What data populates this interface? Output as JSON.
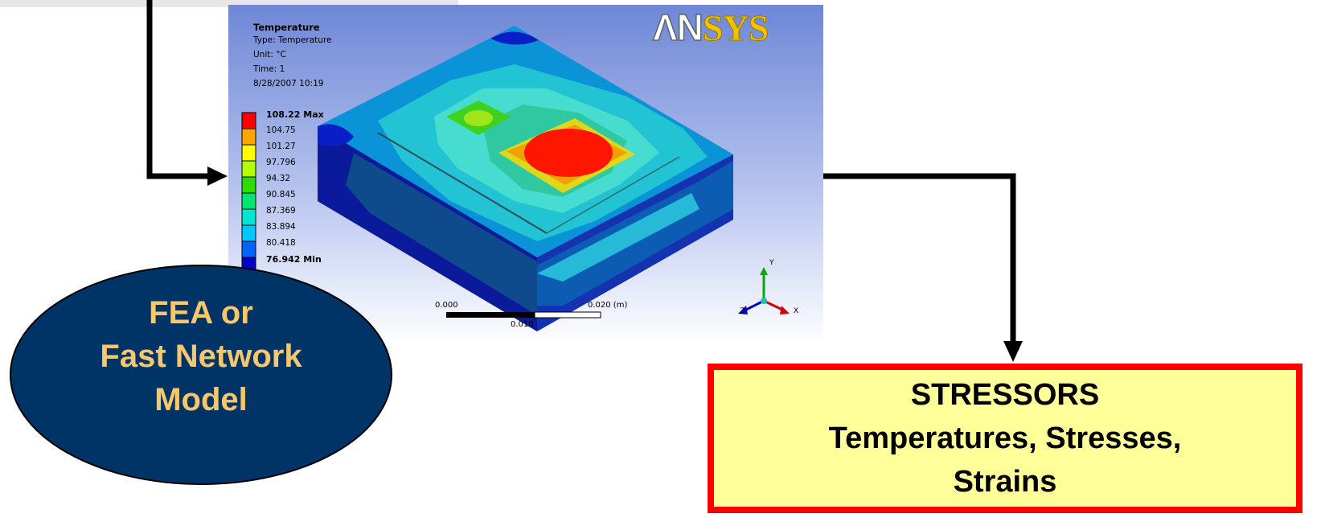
{
  "fea_result": {
    "title": "Temperature",
    "type_line": "Type: Temperature",
    "unit_line": "Unit: °C",
    "time_line": "Time: 1",
    "date_line": "8/28/2007 10:19",
    "logo_a": "ΛN",
    "logo_b": "SYS",
    "legend": [
      {
        "label": "108.22 Max",
        "color": "#ff0000",
        "bold": true
      },
      {
        "label": "104.75",
        "color": "#ffa500",
        "bold": false
      },
      {
        "label": "101.27",
        "color": "#ffff00",
        "bold": false
      },
      {
        "label": "97.796",
        "color": "#b4ff00",
        "bold": false
      },
      {
        "label": "94.32",
        "color": "#2ddc00",
        "bold": false
      },
      {
        "label": "90.845",
        "color": "#00e66e",
        "bold": false
      },
      {
        "label": "87.369",
        "color": "#00e6d2",
        "bold": false
      },
      {
        "label": "83.894",
        "color": "#00c8ff",
        "bold": false
      },
      {
        "label": "80.418",
        "color": "#0064ff",
        "bold": false
      },
      {
        "label": "76.942 Min",
        "color": "#0000c8",
        "bold": true
      }
    ],
    "scale": {
      "start": "0.000",
      "end": "0.020 (m)",
      "mid": "0.010"
    },
    "triad": {
      "x": "X",
      "y": "Y",
      "z": "Z"
    }
  },
  "model_ellipse": {
    "line1": "FEA or",
    "line2": "Fast Network",
    "line3": "Model"
  },
  "stressors": {
    "line1": "STRESSORS",
    "line2": "Temperatures, Stresses,",
    "line3": "Strains"
  },
  "colors": {
    "ellipse_fill": "#003366",
    "ellipse_text": "#f7c86a",
    "box_fill": "#ffff9a",
    "box_border": "#ff0000",
    "arrow": "#000000"
  }
}
